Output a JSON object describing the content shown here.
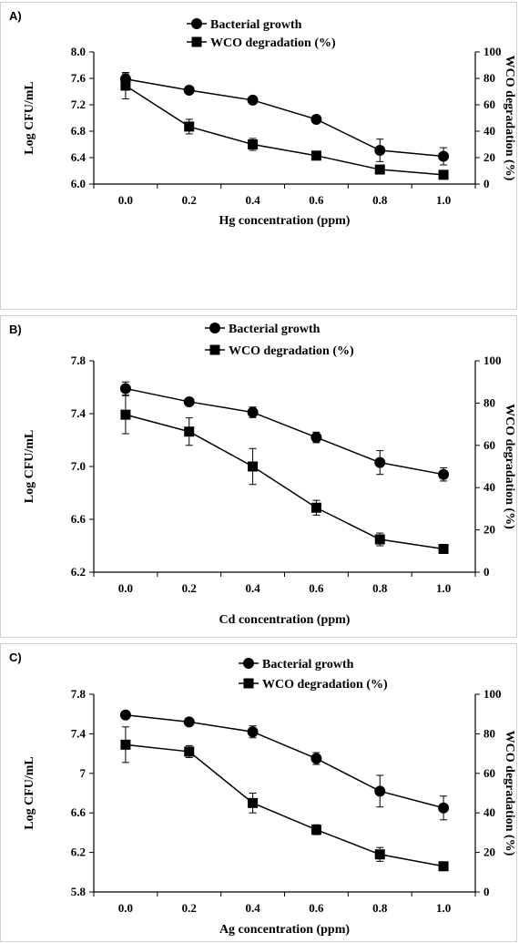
{
  "chart_data": [
    {
      "panel_label": "A)",
      "type": "line",
      "x": [
        "0.0",
        "0.2",
        "0.4",
        "0.6",
        "0.8",
        "1.0"
      ],
      "xlabel": "Hg concentration (ppm)",
      "ylabel": "Log CFU/mL",
      "y2label": "WCO degradation (%)",
      "ylim": [
        6.0,
        8.0
      ],
      "y2lim": [
        0,
        100
      ],
      "yticks": [
        "6.0",
        "6.4",
        "6.8",
        "7.2",
        "7.6",
        "8.0"
      ],
      "y2ticks": [
        "0",
        "20",
        "40",
        "60",
        "80",
        "100"
      ],
      "legend_position": "top-center",
      "series": [
        {
          "name": "Bacterial growth",
          "marker": "circle",
          "axis": "left",
          "values": [
            7.59,
            7.42,
            7.27,
            6.98,
            6.51,
            6.42
          ],
          "errors": [
            0.08,
            0.0,
            0.0,
            0.0,
            0.17,
            0.13
          ]
        },
        {
          "name": "WCO degradation (%)",
          "marker": "square",
          "axis": "right",
          "values": [
            74.5,
            43.5,
            30.0,
            21.5,
            11.0,
            7.0
          ],
          "errors": [
            10.0,
            5.5,
            4.5,
            0.0,
            2.5,
            0.0
          ]
        }
      ]
    },
    {
      "panel_label": "B)",
      "type": "line",
      "x": [
        "0.0",
        "0.2",
        "0.4",
        "0.6",
        "0.8",
        "1.0"
      ],
      "xlabel": "Cd concentration (ppm)",
      "ylabel": "Log CFU/mL",
      "y2label": "WCO degradation (%)",
      "ylim": [
        6.2,
        7.8
      ],
      "y2lim": [
        0,
        100
      ],
      "yticks": [
        "6.2",
        "6.6",
        "7.0",
        "7.4",
        "7.8"
      ],
      "y2ticks": [
        "0",
        "20",
        "40",
        "60",
        "80",
        "100"
      ],
      "legend_position": "top-center",
      "series": [
        {
          "name": "Bacterial growth",
          "marker": "circle",
          "axis": "left",
          "values": [
            7.59,
            7.49,
            7.41,
            7.22,
            7.03,
            6.94
          ],
          "errors": [
            0.05,
            0.0,
            0.04,
            0.04,
            0.09,
            0.05
          ]
        },
        {
          "name": "WCO degradation (%)",
          "marker": "square",
          "axis": "right",
          "values": [
            74.5,
            66.5,
            50.0,
            30.5,
            15.5,
            11.0
          ],
          "errors": [
            9.0,
            6.5,
            8.5,
            3.5,
            3.0,
            0.0
          ]
        }
      ]
    },
    {
      "panel_label": "C)",
      "type": "line",
      "x": [
        "0.0",
        "0.2",
        "0.4",
        "0.6",
        "0.8",
        "1.0"
      ],
      "xlabel": "Ag concentration (ppm)",
      "ylabel": "Log CFU/mL",
      "y2label": "WCO degradation (%)",
      "ylim": [
        5.8,
        7.8
      ],
      "y2lim": [
        0,
        100
      ],
      "yticks": [
        "5.8",
        "6.2",
        "6.6",
        "7",
        "7.4",
        "7.8"
      ],
      "y2ticks": [
        "0",
        "20",
        "40",
        "60",
        "80",
        "100"
      ],
      "legend_position": "top-center",
      "series": [
        {
          "name": "Bacterial growth",
          "marker": "circle",
          "axis": "left",
          "values": [
            7.59,
            7.52,
            7.42,
            7.15,
            6.82,
            6.65
          ],
          "errors": [
            0.0,
            0.0,
            0.06,
            0.06,
            0.16,
            0.12
          ]
        },
        {
          "name": "WCO degradation (%)",
          "marker": "square",
          "axis": "right",
          "values": [
            74.5,
            71.0,
            45.0,
            31.5,
            19.0,
            13.0
          ],
          "errors": [
            9.0,
            3.0,
            5.0,
            2.5,
            3.5,
            2.0
          ]
        }
      ]
    }
  ]
}
